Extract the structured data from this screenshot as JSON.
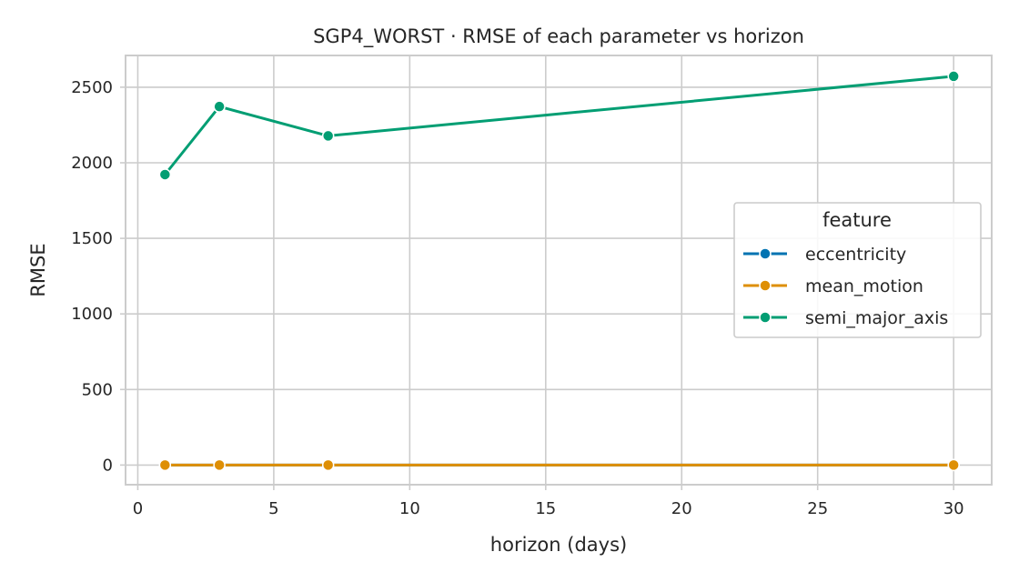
{
  "chart_data": {
    "type": "line",
    "title": "SGP4_WORST · RMSE of each parameter vs horizon",
    "xlabel": "horizon (days)",
    "ylabel": "RMSE",
    "xlim": [
      -0.45,
      31.4
    ],
    "ylim": [
      -130,
      2710
    ],
    "x_ticks": [
      0,
      5,
      10,
      15,
      20,
      25,
      30
    ],
    "y_ticks": [
      0,
      500,
      1000,
      1500,
      2000,
      2500
    ],
    "grid": true,
    "legend": {
      "title": "feature",
      "placement": "center-right"
    },
    "x": [
      1,
      3,
      7,
      30
    ],
    "series": [
      {
        "name": "eccentricity",
        "color": "#0173b2",
        "values": [
          0,
          0,
          0,
          0
        ]
      },
      {
        "name": "mean_motion",
        "color": "#de8f05",
        "values": [
          0,
          0,
          0,
          0
        ]
      },
      {
        "name": "semi_major_axis",
        "color": "#029e73",
        "values": [
          1922,
          2372,
          2178,
          2572
        ]
      }
    ]
  }
}
